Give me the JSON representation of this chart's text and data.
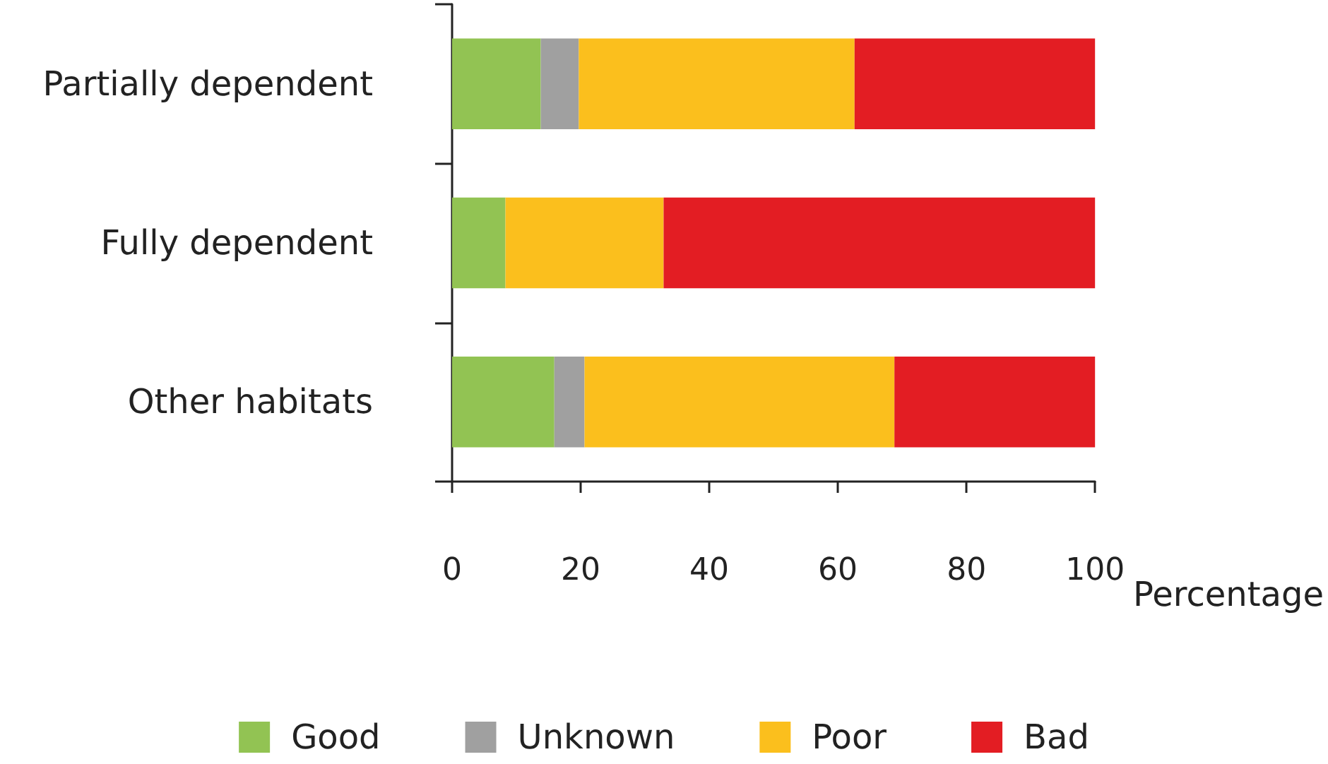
{
  "chart_data": {
    "type": "bar",
    "orientation": "horizontal",
    "stacked": true,
    "xlabel": "Percentage",
    "categories": [
      "Partially dependent",
      "Fully dependent",
      "Other habitats"
    ],
    "series": [
      {
        "name": "Good",
        "color": "#92c353",
        "values": [
          13.8,
          8.3,
          15.9
        ]
      },
      {
        "name": "Unknown",
        "color": "#a0a0a0",
        "values": [
          5.9,
          0,
          4.7
        ]
      },
      {
        "name": "Poor",
        "color": "#fbbf1d",
        "values": [
          42.9,
          24.6,
          48.2
        ]
      },
      {
        "name": "Bad",
        "color": "#e31d23",
        "values": [
          37.4,
          67.1,
          31.2
        ]
      }
    ],
    "xlim": [
      0,
      100
    ],
    "xticks": [
      0,
      20,
      40,
      60,
      80,
      100
    ],
    "grid": false,
    "legend": "bottom"
  }
}
